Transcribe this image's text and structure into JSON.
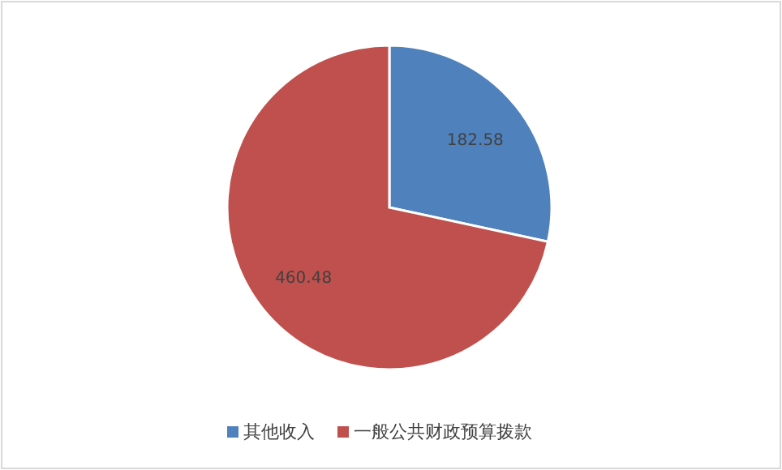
{
  "chart_data": {
    "type": "pie",
    "categories": [
      "其他收入",
      "一般公共财政预算拨款"
    ],
    "values": [
      182.58,
      460.48
    ],
    "colors": [
      "#4f81bd",
      "#c0504d"
    ],
    "data_labels": true,
    "legend": "bottom"
  }
}
